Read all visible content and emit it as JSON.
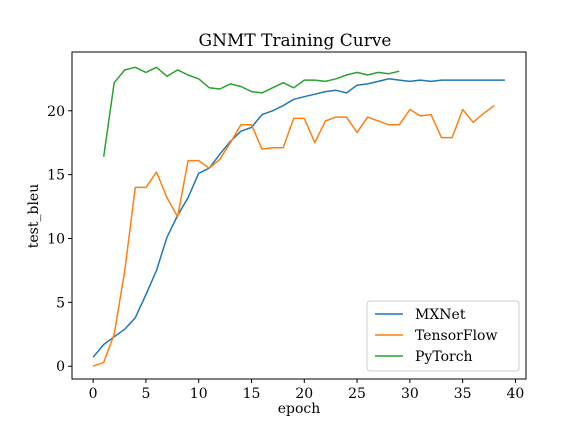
{
  "chart_data": {
    "type": "line",
    "title": "GNMT Training Curve",
    "xlabel": "epoch",
    "ylabel": "test_bleu",
    "xlim": [
      -2,
      41
    ],
    "ylim": [
      -1,
      24.6
    ],
    "xticks": [
      0,
      5,
      10,
      15,
      20,
      25,
      30,
      35,
      40
    ],
    "yticks": [
      0,
      5,
      10,
      15,
      20
    ],
    "grid": false,
    "legend_position": "lower-right",
    "series": [
      {
        "name": "MXNet",
        "color": "#1f77b4",
        "x": [
          0,
          1,
          2,
          3,
          4,
          5,
          6,
          7,
          8,
          9,
          10,
          11,
          12,
          13,
          14,
          15,
          16,
          17,
          18,
          19,
          20,
          21,
          22,
          23,
          24,
          25,
          26,
          27,
          28,
          29,
          30,
          31,
          32,
          33,
          34,
          35,
          36,
          37,
          38,
          39
        ],
        "y": [
          0.7,
          1.7,
          2.3,
          2.9,
          3.8,
          5.6,
          7.5,
          10.1,
          11.8,
          13.2,
          15.1,
          15.5,
          16.6,
          17.6,
          18.4,
          18.7,
          19.7,
          20.0,
          20.4,
          20.9,
          21.1,
          21.3,
          21.5,
          21.6,
          21.4,
          22.0,
          22.1,
          22.3,
          22.5,
          22.4,
          22.3,
          22.4,
          22.3,
          22.4,
          22.4,
          22.4,
          22.4,
          22.4,
          22.4,
          22.4
        ]
      },
      {
        "name": "TensorFlow",
        "color": "#ff7f0e",
        "x": [
          0,
          1,
          2,
          3,
          4,
          5,
          6,
          7,
          8,
          9,
          10,
          11,
          12,
          13,
          14,
          15,
          16,
          17,
          18,
          19,
          20,
          21,
          22,
          23,
          24,
          25,
          26,
          27,
          28,
          29,
          30,
          31,
          32,
          33,
          34,
          35,
          36,
          37,
          38
        ],
        "y": [
          0.0,
          0.3,
          2.5,
          7.5,
          14.0,
          14.0,
          15.2,
          13.2,
          11.7,
          16.1,
          16.1,
          15.5,
          16.2,
          17.5,
          18.9,
          18.9,
          17.0,
          17.1,
          17.1,
          19.4,
          19.4,
          17.5,
          19.2,
          19.5,
          19.5,
          18.3,
          19.5,
          19.2,
          18.9,
          18.9,
          20.1,
          19.6,
          19.7,
          17.9,
          17.9,
          20.1,
          19.1,
          19.8,
          20.4
        ]
      },
      {
        "name": "PyTorch",
        "color": "#2ca02c",
        "x": [
          1,
          2,
          3,
          4,
          5,
          6,
          7,
          8,
          9,
          10,
          11,
          12,
          13,
          14,
          15,
          16,
          17,
          18,
          19,
          20,
          21,
          22,
          23,
          24,
          25,
          26,
          27,
          28,
          29
        ],
        "y": [
          16.4,
          22.2,
          23.2,
          23.4,
          23.0,
          23.4,
          22.7,
          23.2,
          22.8,
          22.5,
          21.8,
          21.7,
          22.1,
          21.9,
          21.5,
          21.4,
          21.8,
          22.2,
          21.8,
          22.4,
          22.4,
          22.3,
          22.5,
          22.8,
          23.0,
          22.8,
          23.0,
          22.9,
          23.1
        ]
      }
    ]
  }
}
